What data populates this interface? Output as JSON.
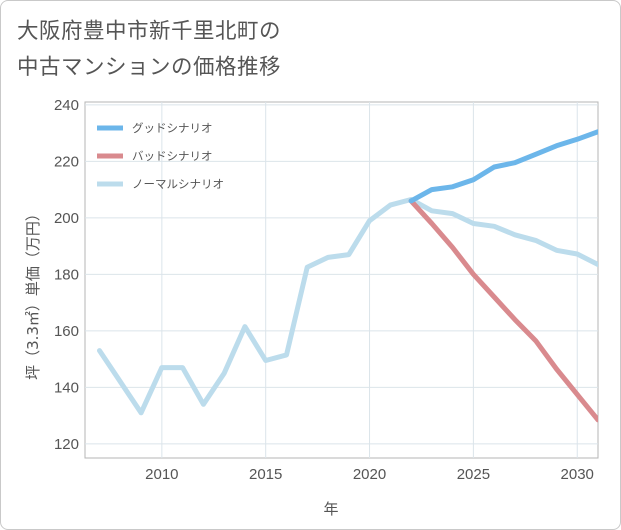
{
  "title": {
    "line1": "大阪府豊中市新千里北町の",
    "line2": "中古マンションの価格推移"
  },
  "chart_data": {
    "type": "line",
    "xlabel": "年",
    "ylabel": "坪（3.3㎡）単価（万円）",
    "xlim": [
      2006.3,
      2031
    ],
    "ylim": [
      115,
      241
    ],
    "x_ticks": [
      2010,
      2015,
      2020,
      2025,
      2030
    ],
    "y_ticks": [
      120,
      140,
      160,
      180,
      200,
      220,
      240
    ],
    "x_tick_labels": [
      "2010",
      "2015",
      "2020",
      "2025",
      "2030"
    ],
    "y_tick_labels": [
      "120",
      "140",
      "160",
      "180",
      "200",
      "220",
      "240"
    ],
    "grid": true,
    "legend_position": "top-left",
    "series": [
      {
        "name": "グッドシナリオ",
        "color": "#6cb6ea",
        "x": [
          2022,
          2023,
          2024,
          2025,
          2026,
          2027,
          2028,
          2029,
          2030,
          2031
        ],
        "values": [
          206,
          210,
          211,
          213.5,
          218,
          219.5,
          222.5,
          225.5,
          227.8,
          230.5
        ]
      },
      {
        "name": "バッドシナリオ",
        "color": "#d98a8e",
        "x": [
          2022,
          2023,
          2024,
          2025,
          2026,
          2027,
          2028,
          2029,
          2030,
          2031
        ],
        "values": [
          206,
          198,
          189.5,
          180,
          172,
          164,
          156.5,
          146.5,
          137.5,
          128.5
        ]
      },
      {
        "name": "ノーマルシナリオ",
        "color": "#bcdcec",
        "x": [
          2007,
          2008,
          2009,
          2010,
          2011,
          2012,
          2013,
          2014,
          2015,
          2016,
          2017,
          2018,
          2019,
          2020,
          2021,
          2022,
          2023,
          2024,
          2025,
          2026,
          2027,
          2028,
          2029,
          2030,
          2031
        ],
        "values": [
          153,
          142,
          131,
          147,
          147,
          134,
          145,
          161.5,
          149.5,
          151.5,
          182.5,
          186,
          187,
          199,
          204.5,
          206.5,
          202.5,
          201.5,
          198,
          197,
          194,
          192,
          188.5,
          187.2,
          183.5
        ]
      }
    ]
  }
}
